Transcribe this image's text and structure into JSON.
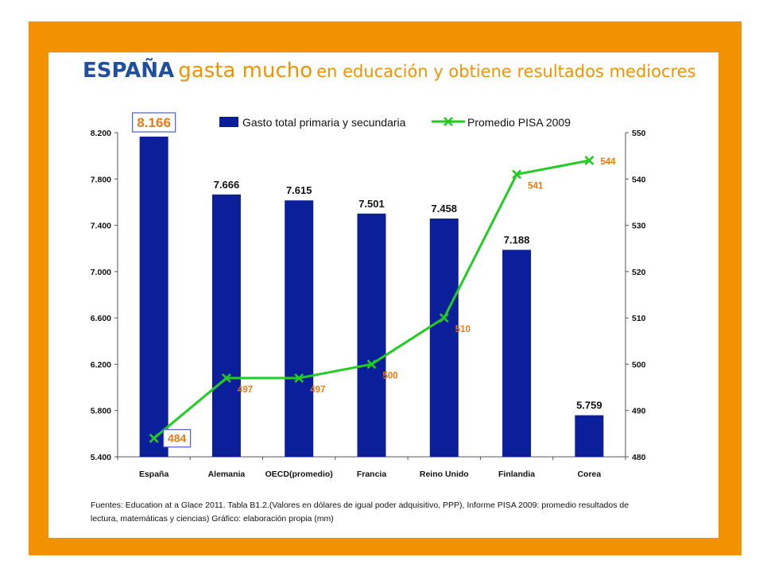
{
  "title": {
    "part1": "ESPAÑA",
    "part2": "gasta mucho",
    "part3": "en educación  y obtiene resultados mediocres"
  },
  "source_text": "Fuentes: Education  at  a Glace 2011. Tabla B1.2.(Valores en dólares de igual poder adquisitivo, PPP), Informe PISA 2009: promedio resultados de lectura, matemáticas y ciencias) Gráfico: elaboración propia (mm)",
  "colors": {
    "frame": "#f39200",
    "bar": "#0b1f9a",
    "line": "#22cc22",
    "line_label": "#e87a12",
    "highlight_box": "#4a5fcf"
  },
  "chart_data": {
    "type": "bar",
    "title": "",
    "categories": [
      "España",
      "Alemania",
      "OECD(promedio)",
      "Francia",
      "Reino Unido",
      "Finlandia",
      "Corea"
    ],
    "series": [
      {
        "name": "Gasto total primaria y secundaria",
        "type": "bar",
        "axis": "left",
        "values": [
          8166,
          7666,
          7615,
          7501,
          7458,
          7188,
          5759
        ],
        "labels": [
          "8.166",
          "7.666",
          "7.615",
          "7.501",
          "7.458",
          "7.188",
          "5.759"
        ]
      },
      {
        "name": "Promedio PISA 2009",
        "type": "line",
        "axis": "right",
        "values": [
          484,
          497,
          497,
          500,
          510,
          541,
          544
        ],
        "labels": [
          "484",
          "497",
          "497",
          "500",
          "510",
          "541",
          "544"
        ]
      }
    ],
    "y_left": {
      "range": [
        5400,
        8200
      ],
      "ticks": [
        5400,
        5800,
        6200,
        6600,
        7000,
        7400,
        7800,
        8200
      ],
      "tick_labels": [
        "5.400",
        "5.800",
        "6.200",
        "6.600",
        "7.000",
        "7.400",
        "7.800",
        "8.200"
      ]
    },
    "y_right": {
      "range": [
        480,
        550
      ],
      "ticks": [
        480,
        490,
        500,
        510,
        520,
        530,
        540,
        550
      ],
      "tick_labels": [
        "480",
        "490",
        "500",
        "510",
        "520",
        "530",
        "540",
        "550"
      ]
    },
    "legend_position": "top",
    "grid": false
  }
}
